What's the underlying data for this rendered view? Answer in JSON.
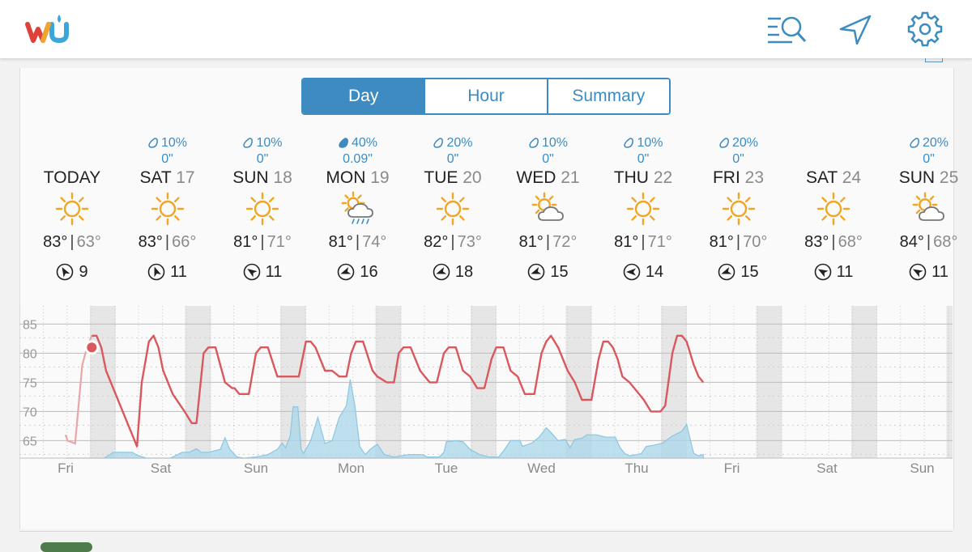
{
  "header": {
    "logo_icon": "wu-logo-icon",
    "search_icon": "list-search-icon",
    "location_icon": "location-arrow-icon",
    "settings_icon": "gear-icon",
    "accent": "#3d8bc0"
  },
  "tabs": [
    {
      "label": "Day",
      "active": true
    },
    {
      "label": "Hour",
      "active": false
    },
    {
      "label": "Summary",
      "active": false
    }
  ],
  "days": [
    {
      "precip": "",
      "amount": "",
      "name": "TODAY",
      "date": "",
      "icon": "sunny-icon",
      "high": "83°",
      "low": "63°",
      "wind": "9"
    },
    {
      "precip": "10%",
      "amount": "0\"",
      "name": "SAT",
      "date": "17",
      "icon": "sunny-icon",
      "high": "83°",
      "low": "66°",
      "wind": "11"
    },
    {
      "precip": "10%",
      "amount": "0\"",
      "name": "SUN",
      "date": "18",
      "icon": "sunny-icon",
      "high": "81°",
      "low": "71°",
      "wind": "11"
    },
    {
      "precip": "40%",
      "amount": "0.09\"",
      "name": "MON",
      "date": "19",
      "icon": "sun-cloud-rain-icon",
      "high": "81°",
      "low": "74°",
      "wind": "16"
    },
    {
      "precip": "20%",
      "amount": "0\"",
      "name": "TUE",
      "date": "20",
      "icon": "sunny-icon",
      "high": "82°",
      "low": "73°",
      "wind": "18"
    },
    {
      "precip": "10%",
      "amount": "0\"",
      "name": "WED",
      "date": "21",
      "icon": "partly-cloudy-icon",
      "high": "81°",
      "low": "72°",
      "wind": "15"
    },
    {
      "precip": "10%",
      "amount": "0\"",
      "name": "THU",
      "date": "22",
      "icon": "sunny-icon",
      "high": "81°",
      "low": "71°",
      "wind": "14"
    },
    {
      "precip": "20%",
      "amount": "0\"",
      "name": "FRI",
      "date": "23",
      "icon": "sunny-icon",
      "high": "81°",
      "low": "70°",
      "wind": "15"
    },
    {
      "precip": "",
      "amount": "",
      "name": "SAT",
      "date": "24",
      "icon": "sunny-icon",
      "high": "83°",
      "low": "68°",
      "wind": "11"
    },
    {
      "precip": "20%",
      "amount": "0\"",
      "name": "SUN",
      "date": "25",
      "icon": "partly-cloudy-icon",
      "high": "84°",
      "low": "68°",
      "wind": "11"
    }
  ],
  "chart_data": {
    "type": "line",
    "ytick_labels": [
      "85",
      "80",
      "75",
      "70",
      "65"
    ],
    "ylim": [
      62,
      87
    ],
    "day_labels": [
      "Fri",
      "Sat",
      "Sun",
      "Mon",
      "Tue",
      "Wed",
      "Thu",
      "Fri",
      "Sat",
      "Sun"
    ],
    "temperature_color": "#d9585e",
    "precip_color": "#a8d6ea",
    "series": [
      {
        "values": [
          [
            0,
            66
          ],
          [
            0.04,
            65
          ],
          [
            0.2,
            64.5
          ],
          [
            0.35,
            78
          ],
          [
            0.45,
            81
          ],
          [
            0.55,
            83
          ],
          [
            0.65,
            83
          ],
          [
            0.75,
            81
          ],
          [
            0.85,
            77
          ],
          [
            1.5,
            64
          ],
          [
            1.6,
            75
          ],
          [
            1.75,
            82
          ],
          [
            1.85,
            83
          ],
          [
            1.95,
            81
          ],
          [
            2.05,
            77
          ],
          [
            2.25,
            73
          ],
          [
            2.5,
            70
          ],
          [
            2.65,
            68
          ],
          [
            2.75,
            68
          ],
          [
            2.9,
            80
          ],
          [
            3.0,
            81
          ],
          [
            3.15,
            81
          ],
          [
            3.35,
            75
          ],
          [
            3.5,
            74
          ],
          [
            3.55,
            74
          ],
          [
            3.65,
            73
          ],
          [
            3.85,
            73
          ],
          [
            4.0,
            80
          ],
          [
            4.1,
            81
          ],
          [
            4.25,
            81
          ],
          [
            4.45,
            76
          ],
          [
            4.55,
            76
          ],
          [
            4.75,
            76
          ],
          [
            4.9,
            76
          ],
          [
            5.05,
            82
          ],
          [
            5.15,
            82
          ],
          [
            5.25,
            81
          ],
          [
            5.45,
            77
          ],
          [
            5.6,
            77
          ],
          [
            5.75,
            76
          ],
          [
            5.9,
            76
          ],
          [
            6.0,
            80
          ],
          [
            6.1,
            82
          ],
          [
            6.25,
            82
          ],
          [
            6.45,
            77
          ],
          [
            6.55,
            76
          ],
          [
            6.75,
            75
          ],
          [
            6.9,
            75
          ],
          [
            7.0,
            80
          ],
          [
            7.1,
            81
          ],
          [
            7.25,
            81
          ],
          [
            7.45,
            77
          ],
          [
            7.55,
            76
          ],
          [
            7.65,
            75
          ],
          [
            7.8,
            75
          ],
          [
            7.95,
            80
          ],
          [
            8.05,
            81
          ],
          [
            8.2,
            81
          ],
          [
            8.35,
            77
          ],
          [
            8.5,
            76
          ],
          [
            8.65,
            74
          ],
          [
            8.8,
            74
          ],
          [
            8.95,
            79
          ],
          [
            9.05,
            81
          ],
          [
            9.2,
            81
          ],
          [
            9.35,
            77
          ],
          [
            9.5,
            76
          ],
          [
            9.65,
            73
          ],
          [
            9.85,
            73
          ],
          [
            10.0,
            80
          ],
          [
            10.1,
            82
          ],
          [
            10.2,
            83
          ],
          [
            10.35,
            81
          ],
          [
            10.55,
            77
          ],
          [
            10.7,
            75
          ],
          [
            10.85,
            72
          ],
          [
            11.05,
            72
          ],
          [
            11.2,
            79
          ],
          [
            11.3,
            82
          ],
          [
            11.4,
            82
          ],
          [
            11.5,
            81
          ],
          [
            11.6,
            79
          ],
          [
            11.7,
            76
          ],
          [
            11.85,
            75
          ],
          [
            12.05,
            73
          ],
          [
            12.15,
            72
          ],
          [
            12.3,
            70
          ],
          [
            12.5,
            70
          ],
          [
            12.6,
            71
          ],
          [
            12.75,
            80
          ],
          [
            12.85,
            83
          ],
          [
            12.95,
            83
          ],
          [
            13.05,
            82
          ],
          [
            13.2,
            78
          ],
          [
            13.3,
            76
          ],
          [
            13.4,
            75
          ]
        ]
      },
      {
        "values": [
          [
            0,
            62
          ],
          [
            0.8,
            62
          ],
          [
            0.9,
            62.4
          ],
          [
            1.0,
            63
          ],
          [
            1.2,
            63
          ],
          [
            1.4,
            63
          ],
          [
            1.5,
            62.5
          ],
          [
            1.7,
            62
          ],
          [
            2.2,
            62
          ],
          [
            2.45,
            63
          ],
          [
            2.6,
            63
          ],
          [
            2.75,
            63.6
          ],
          [
            2.85,
            63
          ],
          [
            3.0,
            63
          ],
          [
            3.25,
            63.5
          ],
          [
            3.35,
            65.5
          ],
          [
            3.45,
            63.5
          ],
          [
            3.6,
            62.2
          ],
          [
            3.75,
            62
          ],
          [
            4.0,
            62.2
          ],
          [
            4.25,
            62.6
          ],
          [
            4.45,
            63.5
          ],
          [
            4.55,
            64.6
          ],
          [
            4.62,
            63.8
          ],
          [
            4.72,
            65.8
          ],
          [
            4.78,
            70.8
          ],
          [
            4.88,
            70.8
          ],
          [
            4.95,
            63.5
          ],
          [
            5.0,
            62.8
          ],
          [
            5.15,
            65
          ],
          [
            5.3,
            69
          ],
          [
            5.45,
            64.5
          ],
          [
            5.6,
            65
          ],
          [
            5.75,
            69
          ],
          [
            5.9,
            71
          ],
          [
            5.98,
            75.5
          ],
          [
            6.08,
            71
          ],
          [
            6.18,
            64
          ],
          [
            6.3,
            62.6
          ],
          [
            6.4,
            63.5
          ],
          [
            6.55,
            64.4
          ],
          [
            6.7,
            62.6
          ],
          [
            6.9,
            62.2
          ],
          [
            7.2,
            62.6
          ],
          [
            7.5,
            62.6
          ],
          [
            7.6,
            62.2
          ],
          [
            7.85,
            62.2
          ],
          [
            7.95,
            63
          ],
          [
            8.0,
            64.8
          ],
          [
            8.2,
            65
          ],
          [
            8.35,
            64.8
          ],
          [
            8.5,
            63.5
          ],
          [
            8.7,
            62.6
          ],
          [
            8.9,
            62.2
          ],
          [
            9.1,
            62.2
          ],
          [
            9.2,
            63.2
          ],
          [
            9.35,
            65
          ],
          [
            9.55,
            65
          ],
          [
            9.6,
            64
          ],
          [
            9.8,
            64.6
          ],
          [
            9.95,
            65.6
          ],
          [
            10.1,
            67.2
          ],
          [
            10.2,
            66.4
          ],
          [
            10.35,
            65
          ],
          [
            10.5,
            65.2
          ],
          [
            10.6,
            63.8
          ],
          [
            10.7,
            65.2
          ],
          [
            10.85,
            65.4
          ],
          [
            10.95,
            66
          ],
          [
            11.15,
            66
          ],
          [
            11.25,
            65.8
          ],
          [
            11.35,
            65.6
          ],
          [
            11.55,
            65.6
          ],
          [
            11.65,
            63.8
          ],
          [
            11.75,
            62.8
          ],
          [
            11.85,
            62.4
          ],
          [
            12.0,
            62.6
          ],
          [
            12.1,
            62.8
          ],
          [
            12.2,
            64
          ],
          [
            12.35,
            64.2
          ],
          [
            12.55,
            64.6
          ],
          [
            12.75,
            65.8
          ],
          [
            12.95,
            66.6
          ],
          [
            13.05,
            67.8
          ],
          [
            13.15,
            64.4
          ],
          [
            13.2,
            62.8
          ],
          [
            13.3,
            62.4
          ],
          [
            13.4,
            62.6
          ]
        ]
      }
    ]
  }
}
